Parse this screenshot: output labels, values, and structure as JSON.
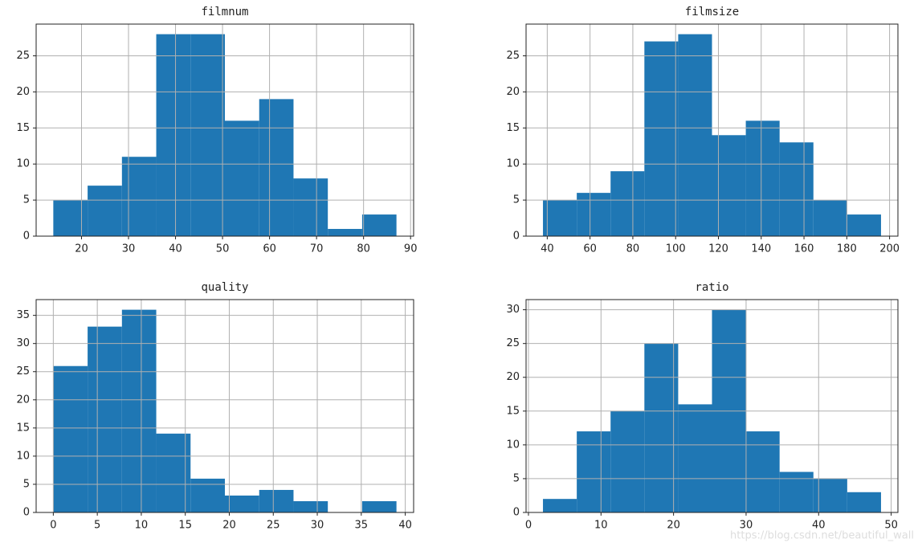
{
  "chart_data": [
    {
      "type": "histogram",
      "title": "filmnum",
      "color": "#1f77b4",
      "grid": true,
      "bins": [
        14,
        21.3,
        28.6,
        35.9,
        43.2,
        50.5,
        57.8,
        65.1,
        72.4,
        79.7,
        87
      ],
      "counts": [
        5,
        7,
        11,
        28,
        28,
        16,
        19,
        8,
        1,
        3
      ],
      "xlim": [
        10.35,
        90.65
      ],
      "xticks": [
        20,
        30,
        40,
        50,
        60,
        70,
        80,
        90
      ],
      "ylim": [
        0,
        29.4
      ],
      "yticks": [
        0,
        5,
        10,
        15,
        20,
        25
      ]
    },
    {
      "type": "histogram",
      "title": "filmsize",
      "color": "#1f77b4",
      "grid": true,
      "bins": [
        38,
        53.8,
        69.6,
        85.4,
        101.2,
        117,
        132.8,
        148.6,
        164.4,
        180.2,
        196
      ],
      "counts": [
        5,
        6,
        9,
        27,
        28,
        14,
        16,
        13,
        5,
        3
      ],
      "xlim": [
        30.1,
        203.9
      ],
      "xticks": [
        40,
        60,
        80,
        100,
        120,
        140,
        160,
        180,
        200
      ],
      "ylim": [
        0,
        29.4
      ],
      "yticks": [
        0,
        5,
        10,
        15,
        20,
        25
      ]
    },
    {
      "type": "histogram",
      "title": "quality",
      "color": "#1f77b4",
      "grid": true,
      "bins": [
        0,
        3.9,
        7.8,
        11.7,
        15.6,
        19.5,
        23.4,
        27.3,
        31.2,
        35.1,
        39
      ],
      "counts": [
        26,
        33,
        36,
        14,
        6,
        3,
        4,
        2,
        0,
        2
      ],
      "xlim": [
        -1.95,
        40.95
      ],
      "xticks": [
        0,
        5,
        10,
        15,
        20,
        25,
        30,
        35,
        40
      ],
      "ylim": [
        0,
        37.8
      ],
      "yticks": [
        0,
        5,
        10,
        15,
        20,
        25,
        30,
        35
      ]
    },
    {
      "type": "histogram",
      "title": "ratio",
      "color": "#1f77b4",
      "grid": true,
      "bins": [
        2,
        6.66,
        11.32,
        15.98,
        20.64,
        25.3,
        29.96,
        34.62,
        39.28,
        43.94,
        48.6
      ],
      "counts": [
        2,
        12,
        15,
        25,
        16,
        30,
        12,
        6,
        5,
        3
      ],
      "xlim": [
        -0.33,
        50.93
      ],
      "xticks": [
        0,
        10,
        20,
        30,
        40,
        50
      ],
      "ylim": [
        0,
        31.5
      ],
      "yticks": [
        0,
        5,
        10,
        15,
        20,
        25,
        30
      ]
    }
  ],
  "watermark": "https://blog.csdn.net/beautiful_wall"
}
